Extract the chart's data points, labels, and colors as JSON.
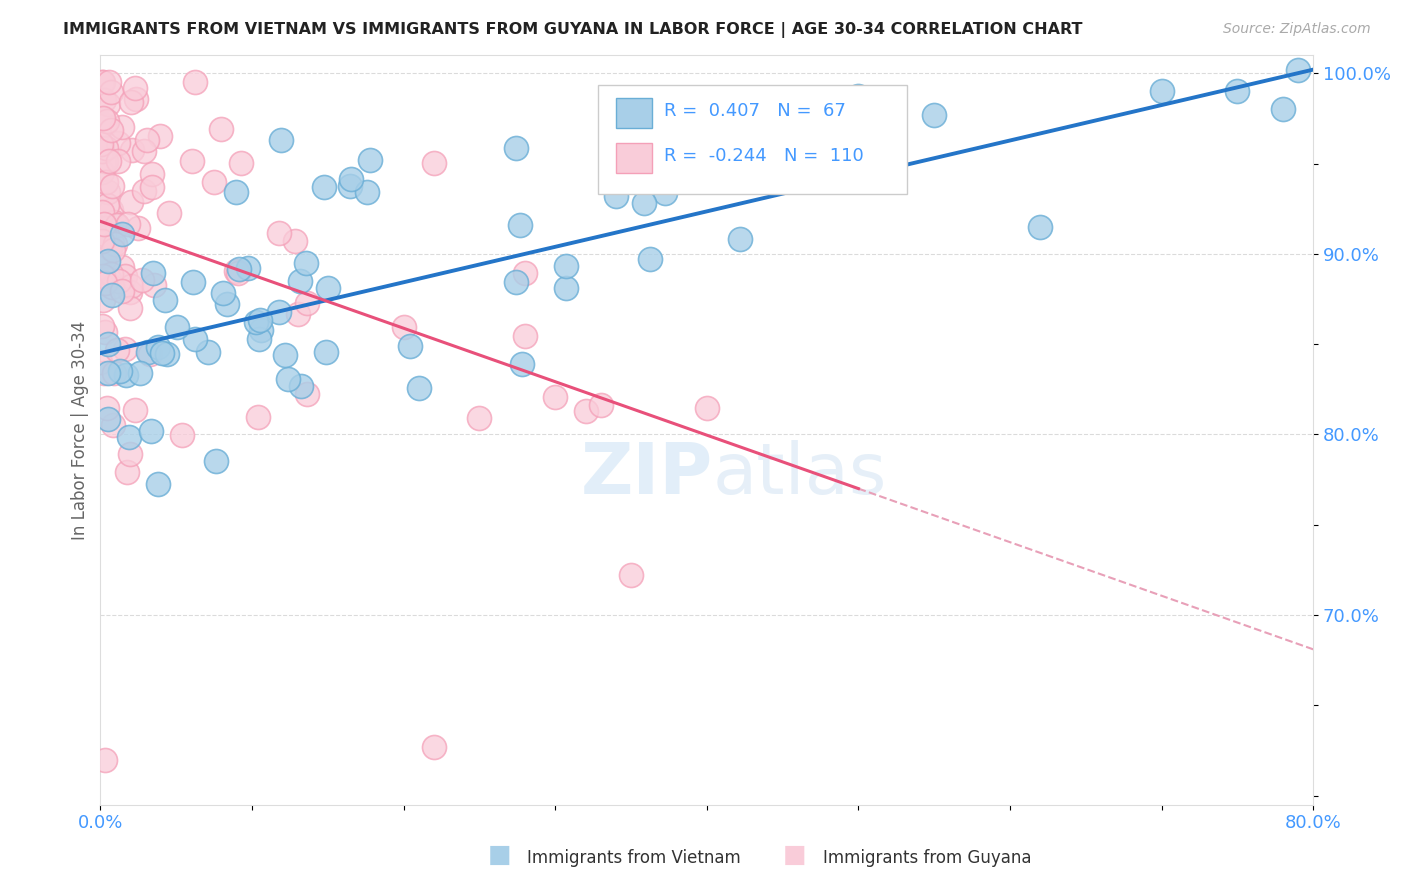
{
  "title": "IMMIGRANTS FROM VIETNAM VS IMMIGRANTS FROM GUYANA IN LABOR FORCE | AGE 30-34 CORRELATION CHART",
  "source": "Source: ZipAtlas.com",
  "ylabel": "In Labor Force | Age 30-34",
  "xlim": [
    0.0,
    0.8
  ],
  "ylim": [
    0.595,
    1.01
  ],
  "xticks": [
    0.0,
    0.1,
    0.2,
    0.3,
    0.4,
    0.5,
    0.6,
    0.7,
    0.8
  ],
  "xticklabels": [
    "0.0%",
    "",
    "",
    "",
    "",
    "",
    "",
    "",
    "80.0%"
  ],
  "yticks": [
    0.6,
    0.65,
    0.7,
    0.75,
    0.8,
    0.85,
    0.9,
    0.95,
    1.0
  ],
  "yticklabels_right": [
    "",
    "",
    "70.0%",
    "",
    "80.0%",
    "",
    "90.0%",
    "",
    "100.0%"
  ],
  "vietnam_fill_color": "#a8cfe8",
  "vietnam_edge_color": "#6aaed6",
  "guyana_fill_color": "#f9ccd9",
  "guyana_edge_color": "#f4a0b8",
  "vietnam_line_color": "#2475c8",
  "guyana_line_color": "#e8507a",
  "dashed_line_color": "#e8a0b8",
  "legend_vietnam_R": "0.407",
  "legend_vietnam_N": "67",
  "legend_guyana_R": "-0.244",
  "legend_guyana_N": "110",
  "label_vietnam": "Immigrants from Vietnam",
  "label_guyana": "Immigrants from Guyana",
  "watermark_zip": "ZIP",
  "watermark_atlas": "atlas",
  "title_color": "#222222",
  "axis_label_color": "#666666",
  "tick_color": "#4499ff",
  "legend_text_color": "#4499ff",
  "background_color": "#ffffff",
  "grid_color": "#cccccc",
  "viet_line_x0": 0.0,
  "viet_line_y0": 0.845,
  "viet_line_x1": 0.8,
  "viet_line_y1": 1.002,
  "guyana_line_x0": 0.0,
  "guyana_line_y0": 0.918,
  "guyana_line_x1": 0.5,
  "guyana_line_y1": 0.77,
  "dash_line_x0": 0.5,
  "dash_line_y0": 0.77,
  "dash_line_x1": 0.8,
  "dash_line_y1": 0.681
}
